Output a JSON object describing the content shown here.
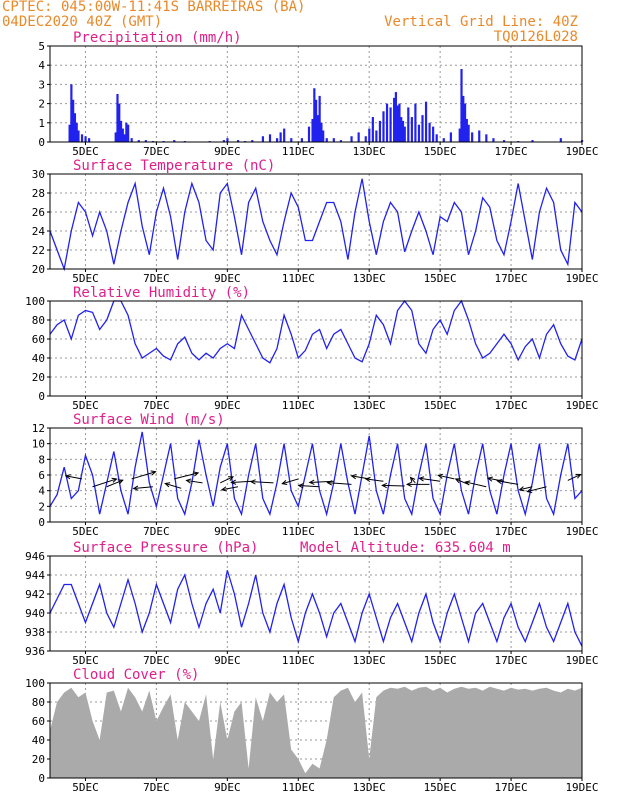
{
  "header": {
    "line1_left": "CPTEC:   045:00W-11:41S  BARREIRAS (BA)",
    "line2_left": "04DEC2020 40Z (GMT)",
    "line1_right": "Vertical Grid Line: 40Z",
    "line2_right": "TQ0126L028"
  },
  "colors": {
    "header": "#e8892a",
    "title": "#e0208a",
    "series": "#2222ee",
    "cloud": "#aaaaaa",
    "grid": "#999999"
  },
  "chart_data": [
    {
      "type": "bar",
      "title": "Precipitation (mm/h)",
      "x_ticks": [
        "5DEC",
        "7DEC",
        "9DEC",
        "11DEC",
        "13DEC",
        "15DEC",
        "17DEC",
        "19DEC"
      ],
      "x": [
        4.55,
        4.6,
        4.65,
        4.7,
        4.75,
        4.8,
        4.9,
        5.0,
        5.1,
        5.85,
        5.9,
        5.95,
        6.0,
        6.05,
        6.1,
        6.15,
        6.2,
        6.3,
        6.5,
        6.7,
        6.9,
        7.2,
        7.5,
        7.8,
        8.5,
        8.9,
        9.0,
        9.3,
        9.5,
        9.7,
        10.0,
        10.2,
        10.4,
        10.5,
        10.6,
        10.8,
        11.1,
        11.3,
        11.4,
        11.45,
        11.5,
        11.55,
        11.6,
        11.65,
        11.7,
        11.8,
        12.0,
        12.2,
        12.5,
        12.7,
        12.9,
        13.0,
        13.1,
        13.2,
        13.3,
        13.4,
        13.5,
        13.6,
        13.7,
        13.75,
        13.8,
        13.85,
        13.9,
        13.95,
        14.0,
        14.1,
        14.2,
        14.3,
        14.4,
        14.5,
        14.6,
        14.7,
        14.8,
        14.9,
        15.1,
        15.3,
        15.55,
        15.6,
        15.65,
        15.7,
        15.75,
        15.8,
        15.9,
        16.1,
        16.3,
        16.5,
        16.8,
        17.2,
        17.6,
        18.4,
        19.0
      ],
      "y": [
        0.9,
        3.0,
        2.2,
        1.5,
        1.0,
        0.6,
        0.4,
        0.3,
        0.2,
        0.5,
        2.5,
        2.0,
        1.1,
        0.7,
        0.4,
        1.0,
        0.9,
        0.2,
        0.1,
        0.1,
        0.05,
        0.05,
        0.1,
        0.05,
        0.05,
        0.1,
        0.2,
        0.1,
        0.05,
        0.1,
        0.3,
        0.4,
        0.2,
        0.5,
        0.7,
        0.2,
        0.2,
        0.8,
        1.2,
        2.8,
        2.2,
        1.4,
        2.4,
        1.0,
        0.6,
        0.2,
        0.2,
        0.1,
        0.3,
        0.5,
        0.3,
        0.7,
        1.3,
        0.6,
        1.1,
        1.6,
        2.0,
        1.8,
        2.3,
        2.6,
        1.9,
        2.0,
        1.3,
        1.1,
        0.8,
        1.8,
        1.3,
        2.0,
        0.9,
        1.4,
        2.1,
        1.0,
        0.8,
        0.4,
        0.2,
        0.5,
        0.7,
        3.8,
        2.4,
        2.0,
        1.2,
        0.9,
        0.5,
        0.6,
        0.4,
        0.2,
        0.1,
        0.05,
        0.1,
        0.2,
        0.1
      ],
      "ylim": [
        0,
        5
      ],
      "y_ticks": [
        0,
        1,
        2,
        3,
        4,
        5
      ]
    },
    {
      "type": "line",
      "title": "Surface Temperature (nC)",
      "x_ticks": [
        "5DEC",
        "7DEC",
        "9DEC",
        "11DEC",
        "13DEC",
        "15DEC",
        "17DEC",
        "19DEC"
      ],
      "x": [
        4.0,
        4.2,
        4.4,
        4.6,
        4.8,
        5.0,
        5.2,
        5.4,
        5.6,
        5.8,
        6.0,
        6.2,
        6.4,
        6.6,
        6.8,
        7.0,
        7.2,
        7.4,
        7.6,
        7.8,
        8.0,
        8.2,
        8.4,
        8.6,
        8.8,
        9.0,
        9.2,
        9.4,
        9.6,
        9.8,
        10.0,
        10.2,
        10.4,
        10.6,
        10.8,
        11.0,
        11.2,
        11.4,
        11.6,
        11.8,
        12.0,
        12.2,
        12.4,
        12.6,
        12.8,
        13.0,
        13.2,
        13.4,
        13.6,
        13.8,
        14.0,
        14.2,
        14.4,
        14.6,
        14.8,
        15.0,
        15.2,
        15.4,
        15.6,
        15.8,
        16.0,
        16.2,
        16.4,
        16.6,
        16.8,
        17.0,
        17.2,
        17.4,
        17.6,
        17.8,
        18.0,
        18.2,
        18.4,
        18.6,
        18.8,
        19.0
      ],
      "y": [
        24,
        22,
        20,
        24,
        27,
        26,
        23.5,
        26,
        24,
        20.5,
        24,
        27,
        29,
        24.5,
        21.5,
        26,
        28.5,
        25.5,
        21,
        26,
        29,
        27,
        23,
        22,
        28,
        29,
        25.5,
        21.5,
        27,
        28.5,
        25,
        23,
        21.5,
        25,
        28,
        26.5,
        23,
        23,
        25,
        27,
        27,
        25,
        21,
        26,
        29.5,
        25,
        21.5,
        25,
        27,
        26,
        21.8,
        24,
        26,
        24,
        21.5,
        25.5,
        25,
        27,
        26,
        21.5,
        24,
        27.5,
        26.5,
        23,
        21.5,
        25,
        29,
        25,
        21,
        26,
        28.5,
        27,
        22,
        20.5,
        27,
        26
      ],
      "ylim": [
        20,
        30
      ],
      "y_ticks": [
        20,
        22,
        24,
        26,
        28,
        30
      ]
    },
    {
      "type": "line",
      "title": "Relative Humidity (%)",
      "x_ticks": [
        "5DEC",
        "7DEC",
        "9DEC",
        "11DEC",
        "13DEC",
        "15DEC",
        "17DEC",
        "19DEC"
      ],
      "x": [
        4.0,
        4.2,
        4.4,
        4.6,
        4.8,
        5.0,
        5.2,
        5.4,
        5.6,
        5.8,
        6.0,
        6.2,
        6.4,
        6.6,
        6.8,
        7.0,
        7.2,
        7.4,
        7.6,
        7.8,
        8.0,
        8.2,
        8.4,
        8.6,
        8.8,
        9.0,
        9.2,
        9.4,
        9.6,
        9.8,
        10.0,
        10.2,
        10.4,
        10.6,
        10.8,
        11.0,
        11.2,
        11.4,
        11.6,
        11.8,
        12.0,
        12.2,
        12.4,
        12.6,
        12.8,
        13.0,
        13.2,
        13.4,
        13.6,
        13.8,
        14.0,
        14.2,
        14.4,
        14.6,
        14.8,
        15.0,
        15.2,
        15.4,
        15.6,
        15.8,
        16.0,
        16.2,
        16.4,
        16.6,
        16.8,
        17.0,
        17.2,
        17.4,
        17.6,
        17.8,
        18.0,
        18.2,
        18.4,
        18.6,
        18.8,
        19.0
      ],
      "y": [
        65,
        75,
        80,
        60,
        85,
        90,
        88,
        70,
        80,
        100,
        100,
        85,
        55,
        40,
        45,
        50,
        42,
        38,
        55,
        62,
        45,
        38,
        45,
        40,
        50,
        55,
        50,
        85,
        70,
        55,
        40,
        35,
        50,
        85,
        65,
        40,
        48,
        65,
        70,
        50,
        65,
        70,
        55,
        40,
        36,
        55,
        85,
        75,
        55,
        90,
        100,
        90,
        55,
        45,
        70,
        80,
        65,
        90,
        100,
        80,
        55,
        40,
        45,
        55,
        65,
        55,
        38,
        52,
        60,
        40,
        65,
        75,
        55,
        42,
        38,
        60
      ],
      "ylim": [
        0,
        100
      ],
      "y_ticks": [
        0,
        20,
        40,
        60,
        80,
        100
      ]
    },
    {
      "type": "line",
      "title": "Surface Wind (m/s)",
      "x_ticks": [
        "5DEC",
        "7DEC",
        "9DEC",
        "11DEC",
        "13DEC",
        "15DEC",
        "17DEC",
        "19DEC"
      ],
      "x": [
        4.0,
        4.2,
        4.4,
        4.6,
        4.8,
        5.0,
        5.2,
        5.4,
        5.6,
        5.8,
        6.0,
        6.2,
        6.4,
        6.6,
        6.8,
        7.0,
        7.2,
        7.4,
        7.6,
        7.8,
        8.0,
        8.2,
        8.4,
        8.6,
        8.8,
        9.0,
        9.2,
        9.4,
        9.6,
        9.8,
        10.0,
        10.2,
        10.4,
        10.6,
        10.8,
        11.0,
        11.2,
        11.4,
        11.6,
        11.8,
        12.0,
        12.2,
        12.4,
        12.6,
        12.8,
        13.0,
        13.2,
        13.4,
        13.6,
        13.8,
        14.0,
        14.2,
        14.4,
        14.6,
        14.8,
        15.0,
        15.2,
        15.4,
        15.6,
        15.8,
        16.0,
        16.2,
        16.4,
        16.6,
        16.8,
        17.0,
        17.2,
        17.4,
        17.6,
        17.8,
        18.0,
        18.2,
        18.4,
        18.6,
        18.8,
        19.0
      ],
      "y": [
        2,
        3.5,
        7,
        3,
        4,
        8.5,
        6,
        1,
        5,
        9,
        4,
        1,
        7,
        11.5,
        5,
        2,
        6,
        10,
        3,
        1,
        5,
        10.5,
        6,
        2,
        7,
        10,
        3,
        1,
        6,
        10,
        3,
        1,
        5,
        10,
        4,
        2,
        6,
        10,
        4,
        1,
        5,
        10,
        5,
        1,
        6,
        11,
        4,
        1,
        6,
        10,
        3,
        1,
        6,
        10,
        3,
        1,
        6,
        10,
        4,
        1,
        6,
        10,
        4,
        1,
        6,
        10,
        4,
        1,
        5,
        10,
        3,
        1,
        6,
        10,
        3,
        4
      ],
      "ylim": [
        0,
        12
      ],
      "y_ticks": [
        0,
        2,
        4,
        6,
        8,
        10,
        12
      ],
      "wind_arrows": [
        {
          "x": 4.9,
          "y": 5.5,
          "u": -1,
          "v": 0.5
        },
        {
          "x": 5.2,
          "y": 4.5,
          "u": 1.5,
          "v": 1.3
        },
        {
          "x": 5.6,
          "y": 4.5,
          "u": 1.0,
          "v": 1.1
        },
        {
          "x": 6.3,
          "y": 5.5,
          "u": 1.5,
          "v": 1.2
        },
        {
          "x": 6.9,
          "y": 4.5,
          "u": -1.2,
          "v": -0.3
        },
        {
          "x": 7.5,
          "y": 5.5,
          "u": 1.5,
          "v": 1.0
        },
        {
          "x": 7.7,
          "y": 4.3,
          "u": -1.0,
          "v": 0.8
        },
        {
          "x": 8.3,
          "y": 5.0,
          "u": -1.0,
          "v": 0.4
        },
        {
          "x": 8.8,
          "y": 5.0,
          "u": 0.8,
          "v": 1.0
        },
        {
          "x": 9.3,
          "y": 4.5,
          "u": -1.0,
          "v": -0.5
        },
        {
          "x": 9.7,
          "y": 5.2,
          "u": -1.3,
          "v": -0.2
        },
        {
          "x": 10.3,
          "y": 5.0,
          "u": -1.4,
          "v": 0.2
        },
        {
          "x": 11.0,
          "y": 5.5,
          "u": -1.0,
          "v": -0.8
        },
        {
          "x": 11.6,
          "y": 4.5,
          "u": -1.3,
          "v": 0.2
        },
        {
          "x": 12.0,
          "y": 5.2,
          "u": -1.5,
          "v": -0.2
        },
        {
          "x": 12.5,
          "y": 4.8,
          "u": -1.5,
          "v": 0.3
        },
        {
          "x": 13.0,
          "y": 5.5,
          "u": -1.1,
          "v": 0.5
        },
        {
          "x": 13.4,
          "y": 5.2,
          "u": -1.1,
          "v": 0.4
        },
        {
          "x": 14.0,
          "y": 4.6,
          "u": -1.4,
          "v": 0.1
        },
        {
          "x": 14.3,
          "y": 5.0,
          "u": -0.3,
          "v": 0.9
        },
        {
          "x": 14.7,
          "y": 4.8,
          "u": -1.4,
          "v": 0.0
        },
        {
          "x": 15.0,
          "y": 5.2,
          "u": -1.3,
          "v": 0.5
        },
        {
          "x": 15.4,
          "y": 5.5,
          "u": -1.0,
          "v": 0.6
        },
        {
          "x": 15.8,
          "y": 4.8,
          "u": -0.8,
          "v": 0.9
        },
        {
          "x": 16.3,
          "y": 4.5,
          "u": -1.3,
          "v": 0.8
        },
        {
          "x": 16.8,
          "y": 5.2,
          "u": -1.0,
          "v": 0.5
        },
        {
          "x": 17.2,
          "y": 4.8,
          "u": -1.3,
          "v": 0.6
        },
        {
          "x": 17.6,
          "y": 4.5,
          "u": -0.8,
          "v": -0.5
        },
        {
          "x": 18.0,
          "y": 4.5,
          "u": -1.2,
          "v": -0.8
        },
        {
          "x": 18.6,
          "y": 5.3,
          "u": 0.8,
          "v": 1.0
        }
      ]
    },
    {
      "type": "line",
      "title": "Surface Pressure (hPa)",
      "annotation": "Model Altitude: 635.604 m",
      "x_ticks": [
        "5DEC",
        "7DEC",
        "9DEC",
        "11DEC",
        "13DEC",
        "15DEC",
        "17DEC",
        "19DEC"
      ],
      "x": [
        4.0,
        4.2,
        4.4,
        4.6,
        4.8,
        5.0,
        5.2,
        5.4,
        5.6,
        5.8,
        6.0,
        6.2,
        6.4,
        6.6,
        6.8,
        7.0,
        7.2,
        7.4,
        7.6,
        7.8,
        8.0,
        8.2,
        8.4,
        8.6,
        8.8,
        9.0,
        9.2,
        9.4,
        9.6,
        9.8,
        10.0,
        10.2,
        10.4,
        10.6,
        10.8,
        11.0,
        11.2,
        11.4,
        11.6,
        11.8,
        12.0,
        12.2,
        12.4,
        12.6,
        12.8,
        13.0,
        13.2,
        13.4,
        13.6,
        13.8,
        14.0,
        14.2,
        14.4,
        14.6,
        14.8,
        15.0,
        15.2,
        15.4,
        15.6,
        15.8,
        16.0,
        16.2,
        16.4,
        16.6,
        16.8,
        17.0,
        17.2,
        17.4,
        17.6,
        17.8,
        18.0,
        18.2,
        18.4,
        18.6,
        18.8,
        19.0
      ],
      "y": [
        940,
        941.5,
        943,
        943,
        941,
        939,
        941,
        943,
        940,
        938.5,
        941,
        943.5,
        941,
        938,
        940,
        943,
        941,
        939,
        942.5,
        944,
        941,
        938.5,
        941,
        942.5,
        940,
        944.5,
        942,
        938.5,
        941,
        944,
        940,
        938,
        941,
        943,
        939.5,
        937,
        940,
        942,
        940,
        937.5,
        940,
        941,
        939,
        937,
        940,
        942,
        939.5,
        937,
        939.5,
        941,
        939,
        937,
        940,
        942,
        939,
        937,
        940,
        942,
        939.5,
        937,
        940,
        941,
        939,
        937,
        939.5,
        941,
        938.5,
        937,
        939,
        941,
        938.5,
        937,
        939,
        941,
        938,
        936.5
      ],
      "ylim": [
        936,
        946
      ],
      "y_ticks": [
        936,
        938,
        940,
        942,
        944,
        946
      ]
    },
    {
      "type": "area",
      "title": "Cloud Cover (%)",
      "x_ticks": [
        "5DEC",
        "7DEC",
        "9DEC",
        "11DEC",
        "13DEC",
        "15DEC",
        "17DEC",
        "19DEC"
      ],
      "x": [
        4.0,
        4.2,
        4.4,
        4.6,
        4.8,
        5.0,
        5.2,
        5.4,
        5.6,
        5.8,
        6.0,
        6.2,
        6.4,
        6.6,
        6.8,
        7.0,
        7.2,
        7.4,
        7.6,
        7.8,
        8.0,
        8.2,
        8.4,
        8.6,
        8.8,
        9.0,
        9.2,
        9.4,
        9.6,
        9.8,
        10.0,
        10.2,
        10.4,
        10.6,
        10.8,
        11.0,
        11.2,
        11.4,
        11.6,
        11.8,
        12.0,
        12.2,
        12.4,
        12.6,
        12.8,
        13.0,
        13.2,
        13.4,
        13.6,
        13.8,
        14.0,
        14.2,
        14.4,
        14.6,
        14.8,
        15.0,
        15.2,
        15.4,
        15.6,
        15.8,
        16.0,
        16.2,
        16.4,
        16.6,
        16.8,
        17.0,
        17.2,
        17.4,
        17.6,
        17.8,
        18.0,
        18.2,
        18.4,
        18.6,
        18.8,
        19.0
      ],
      "y": [
        50,
        80,
        90,
        95,
        85,
        90,
        60,
        40,
        90,
        92,
        70,
        95,
        85,
        70,
        92,
        60,
        75,
        88,
        40,
        80,
        70,
        60,
        88,
        20,
        80,
        40,
        70,
        80,
        10,
        85,
        60,
        90,
        80,
        88,
        30,
        20,
        5,
        15,
        10,
        40,
        85,
        92,
        95,
        80,
        90,
        20,
        85,
        92,
        95,
        94,
        96,
        92,
        95,
        96,
        92,
        95,
        90,
        94,
        96,
        94,
        95,
        92,
        96,
        94,
        92,
        95,
        93,
        94,
        92,
        94,
        95,
        92,
        90,
        94,
        92,
        95
      ],
      "ylim": [
        0,
        100
      ],
      "y_ticks": [
        0,
        20,
        40,
        60,
        80,
        100
      ]
    }
  ]
}
